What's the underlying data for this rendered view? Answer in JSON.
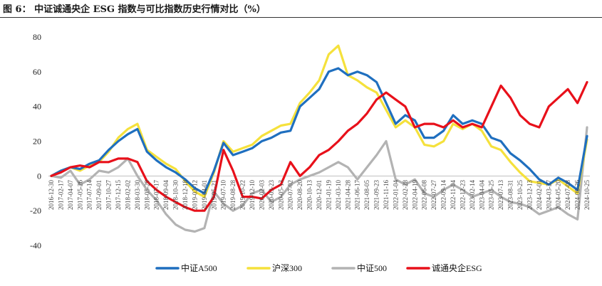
{
  "figure": {
    "title": "图 6： 中证诚通央企 ESG 指数与可比指数历史行情对比（%）"
  },
  "chart_data": {
    "type": "line",
    "ylim": [
      -40,
      80
    ],
    "yticks": [
      -40,
      -20,
      0,
      20,
      40,
      60,
      80
    ],
    "grid": false,
    "legend_position": "bottom",
    "x_tick_labels": [
      "2016-12-30",
      "2017-02-17",
      "2017-04-07",
      "2017-05-26",
      "2017-07-14",
      "2017-09-01",
      "2017-10-27",
      "2017-12-15",
      "2018-02-02",
      "2018-03-30",
      "2018-05-29",
      "2018-07-17",
      "2018-09-04",
      "2018-10-30",
      "2018-12-18",
      "2019-02-12",
      "2019-04-01",
      "2019-05-21",
      "2019-07-10",
      "2019-08-28",
      "2019-10-22",
      "2019-12-10",
      "2020-02-03",
      "2020-03-23",
      "2020-05-13",
      "2020-07-02",
      "2020-08-20",
      "2020-10-13",
      "2020-12-01",
      "2021-01-19",
      "2021-03-10",
      "2021-04-28",
      "2021-06-17",
      "2021-08-05",
      "2021-09-23",
      "2021-11-16",
      "2022-01-04",
      "2022-02-28",
      "2022-04-19",
      "2022-06-08",
      "2022-07-27",
      "2022-09-14",
      "2022-11-04",
      "2022-12-23",
      "2023-02-14",
      "2023-04-04",
      "2023-05-25",
      "2023-07-13",
      "2023-08-31",
      "2023-10-25",
      "2023-12-13",
      "2024-02-01",
      "2024-03-27",
      "2024-05-20",
      "2024-07-08",
      "2024-08-26",
      "2024-10-25"
    ],
    "series": [
      {
        "name": "中证A500",
        "color": "#1f6fbf",
        "values": [
          0,
          3,
          5,
          4,
          7,
          9,
          15,
          20,
          24,
          27,
          14,
          9,
          5,
          2,
          -2,
          -7,
          -10,
          3,
          19,
          12,
          14,
          16,
          20,
          22,
          25,
          26,
          40,
          45,
          50,
          60,
          62,
          58,
          60,
          58,
          54,
          42,
          30,
          35,
          32,
          22,
          22,
          26,
          35,
          30,
          32,
          30,
          22,
          20,
          13,
          9,
          4,
          -2,
          -5,
          -1,
          -4,
          -8,
          23
        ]
      },
      {
        "name": "沪深300",
        "color": "#f5e13c",
        "values": [
          0,
          3,
          5,
          3,
          6,
          8,
          14,
          22,
          27,
          30,
          15,
          11,
          7,
          4,
          -3,
          -9,
          -12,
          2,
          20,
          14,
          16,
          18,
          23,
          26,
          29,
          30,
          42,
          48,
          55,
          70,
          75,
          58,
          55,
          51,
          48,
          38,
          28,
          32,
          28,
          18,
          17,
          20,
          30,
          27,
          30,
          26,
          17,
          15,
          8,
          2,
          -3,
          -4,
          -5,
          -2,
          -6,
          -10,
          21
        ]
      },
      {
        "name": "中证500",
        "color": "#b3b3b3",
        "values": [
          0,
          -1,
          3,
          -5,
          -2,
          3,
          2,
          5,
          10,
          0,
          -8,
          -14,
          -22,
          -28,
          -31,
          -32,
          -30,
          -9,
          -16,
          -20,
          -17,
          -10,
          -8,
          -15,
          -12,
          -5,
          -2,
          0,
          2,
          5,
          8,
          5,
          -2,
          5,
          12,
          20,
          -2,
          -5,
          -2,
          -10,
          -12,
          -8,
          -5,
          -8,
          -12,
          -10,
          -8,
          -12,
          -15,
          -16,
          -18,
          -22,
          -20,
          -18,
          -22,
          -25,
          28
        ]
      },
      {
        "name": "诚通央企ESG",
        "color": "#e8101a",
        "values": [
          0,
          2,
          5,
          6,
          5,
          8,
          8,
          10,
          10,
          8,
          -3,
          -8,
          -12,
          -15,
          -18,
          -20,
          -20,
          -12,
          15,
          3,
          -12,
          -12,
          -13,
          -8,
          -5,
          8,
          0,
          5,
          12,
          15,
          20,
          26,
          30,
          36,
          44,
          48,
          44,
          40,
          28,
          30,
          30,
          28,
          32,
          28,
          30,
          28,
          40,
          52,
          45,
          35,
          30,
          28,
          40,
          45,
          50,
          42,
          54
        ]
      }
    ]
  }
}
